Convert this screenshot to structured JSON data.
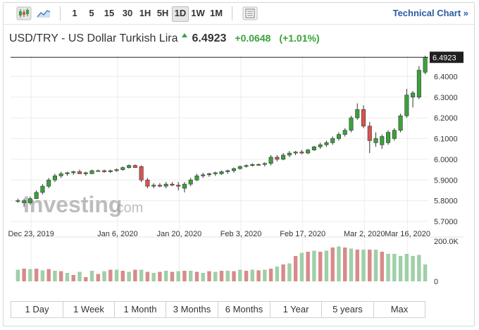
{
  "toolbar": {
    "intervals": [
      "1",
      "5",
      "15",
      "30",
      "1H",
      "5H",
      "1D",
      "1W",
      "1M"
    ],
    "active_interval": "1D",
    "technical_chart": "Technical Chart »"
  },
  "header": {
    "pair": "USD/TRY - US Dollar Turkish Lira",
    "price": "6.4923",
    "change": "+0.0648",
    "change_pct": "(+1.01%)"
  },
  "watermark": {
    "brand": "Investing",
    "suffix": ".com"
  },
  "colors": {
    "up": "#3aa23a",
    "down": "#d9534f",
    "vol_up": "#9fcfa8",
    "vol_down": "#d98a8a"
  },
  "ranges": [
    "1 Day",
    "1 Week",
    "1 Month",
    "3 Months",
    "6 Months",
    "1 Year",
    "5 years",
    "Max"
  ],
  "chart_data": {
    "type": "candlestick",
    "y_ticks": [
      "6.4000",
      "6.3000",
      "6.2000",
      "6.1000",
      "6.0000",
      "5.9000",
      "5.8000",
      "5.7000"
    ],
    "ylim": [
      5.7,
      6.5
    ],
    "x_ticks": [
      "Dec 23, 2019",
      "Jan 6, 2020",
      "Jan 20, 2020",
      "Feb 3, 2020",
      "Feb 17, 2020",
      "Mar 2, 2020",
      "Mar 16, 2020"
    ],
    "last_price_label": "6.4923",
    "last_price": 6.4923,
    "volume_ticks": [
      "200.0K",
      "0"
    ],
    "volume_max": 200000,
    "candles": [
      {
        "o": 5.8,
        "h": 5.81,
        "l": 5.79,
        "c": 5.8
      },
      {
        "o": 5.79,
        "h": 5.81,
        "l": 5.77,
        "c": 5.8
      },
      {
        "o": 5.79,
        "h": 5.82,
        "l": 5.78,
        "c": 5.81
      },
      {
        "o": 5.81,
        "h": 5.85,
        "l": 5.81,
        "c": 5.84
      },
      {
        "o": 5.84,
        "h": 5.88,
        "l": 5.83,
        "c": 5.87
      },
      {
        "o": 5.87,
        "h": 5.91,
        "l": 5.86,
        "c": 5.9
      },
      {
        "o": 5.9,
        "h": 5.93,
        "l": 5.89,
        "c": 5.92
      },
      {
        "o": 5.92,
        "h": 5.94,
        "l": 5.91,
        "c": 5.93
      },
      {
        "o": 5.93,
        "h": 5.94,
        "l": 5.92,
        "c": 5.935
      },
      {
        "o": 5.935,
        "h": 5.945,
        "l": 5.925,
        "c": 5.94
      },
      {
        "o": 5.94,
        "h": 5.95,
        "l": 5.93,
        "c": 5.93
      },
      {
        "o": 5.93,
        "h": 5.94,
        "l": 5.92,
        "c": 5.935
      },
      {
        "o": 5.93,
        "h": 5.95,
        "l": 5.93,
        "c": 5.945
      },
      {
        "o": 5.945,
        "h": 5.95,
        "l": 5.94,
        "c": 5.945
      },
      {
        "o": 5.945,
        "h": 5.95,
        "l": 5.935,
        "c": 5.94
      },
      {
        "o": 5.94,
        "h": 5.95,
        "l": 5.935,
        "c": 5.945
      },
      {
        "o": 5.945,
        "h": 5.955,
        "l": 5.94,
        "c": 5.95
      },
      {
        "o": 5.95,
        "h": 5.965,
        "l": 5.945,
        "c": 5.96
      },
      {
        "o": 5.96,
        "h": 5.975,
        "l": 5.955,
        "c": 5.97
      },
      {
        "o": 5.97,
        "h": 5.975,
        "l": 5.96,
        "c": 5.96
      },
      {
        "o": 5.965,
        "h": 5.97,
        "l": 5.89,
        "c": 5.9
      },
      {
        "o": 5.9,
        "h": 5.91,
        "l": 5.86,
        "c": 5.87
      },
      {
        "o": 5.87,
        "h": 5.885,
        "l": 5.86,
        "c": 5.875
      },
      {
        "o": 5.875,
        "h": 5.885,
        "l": 5.865,
        "c": 5.87
      },
      {
        "o": 5.87,
        "h": 5.89,
        "l": 5.86,
        "c": 5.88
      },
      {
        "o": 5.88,
        "h": 5.89,
        "l": 5.87,
        "c": 5.875
      },
      {
        "o": 5.875,
        "h": 5.89,
        "l": 5.85,
        "c": 5.87
      },
      {
        "o": 5.86,
        "h": 5.89,
        "l": 5.84,
        "c": 5.88
      },
      {
        "o": 5.88,
        "h": 5.91,
        "l": 5.87,
        "c": 5.9
      },
      {
        "o": 5.9,
        "h": 5.93,
        "l": 5.895,
        "c": 5.92
      },
      {
        "o": 5.92,
        "h": 5.935,
        "l": 5.91,
        "c": 5.925
      },
      {
        "o": 5.925,
        "h": 5.935,
        "l": 5.915,
        "c": 5.93
      },
      {
        "o": 5.93,
        "h": 5.94,
        "l": 5.92,
        "c": 5.935
      },
      {
        "o": 5.93,
        "h": 5.945,
        "l": 5.925,
        "c": 5.94
      },
      {
        "o": 5.94,
        "h": 5.95,
        "l": 5.93,
        "c": 5.945
      },
      {
        "o": 5.945,
        "h": 5.96,
        "l": 5.935,
        "c": 5.955
      },
      {
        "o": 5.955,
        "h": 5.97,
        "l": 5.95,
        "c": 5.965
      },
      {
        "o": 5.965,
        "h": 5.975,
        "l": 5.96,
        "c": 5.97
      },
      {
        "o": 5.97,
        "h": 5.98,
        "l": 5.965,
        "c": 5.975
      },
      {
        "o": 5.975,
        "h": 5.98,
        "l": 5.97,
        "c": 5.975
      },
      {
        "o": 5.975,
        "h": 5.985,
        "l": 5.965,
        "c": 5.98
      },
      {
        "o": 5.98,
        "h": 6.02,
        "l": 5.97,
        "c": 6.01
      },
      {
        "o": 6.01,
        "h": 6.02,
        "l": 5.99,
        "c": 6.0
      },
      {
        "o": 6.0,
        "h": 6.03,
        "l": 5.995,
        "c": 6.02
      },
      {
        "o": 6.02,
        "h": 6.04,
        "l": 6.01,
        "c": 6.03
      },
      {
        "o": 6.03,
        "h": 6.04,
        "l": 6.02,
        "c": 6.035
      },
      {
        "o": 6.035,
        "h": 6.045,
        "l": 6.025,
        "c": 6.03
      },
      {
        "o": 6.03,
        "h": 6.05,
        "l": 6.025,
        "c": 6.045
      },
      {
        "o": 6.045,
        "h": 6.065,
        "l": 6.04,
        "c": 6.06
      },
      {
        "o": 6.06,
        "h": 6.08,
        "l": 6.05,
        "c": 6.07
      },
      {
        "o": 6.07,
        "h": 6.09,
        "l": 6.06,
        "c": 6.08
      },
      {
        "o": 6.08,
        "h": 6.11,
        "l": 6.07,
        "c": 6.1
      },
      {
        "o": 6.1,
        "h": 6.13,
        "l": 6.09,
        "c": 6.12
      },
      {
        "o": 6.12,
        "h": 6.15,
        "l": 6.11,
        "c": 6.14
      },
      {
        "o": 6.14,
        "h": 6.21,
        "l": 6.13,
        "c": 6.2
      },
      {
        "o": 6.2,
        "h": 6.27,
        "l": 6.19,
        "c": 6.24
      },
      {
        "o": 6.24,
        "h": 6.26,
        "l": 6.15,
        "c": 6.16
      },
      {
        "o": 6.16,
        "h": 6.18,
        "l": 6.03,
        "c": 6.09
      },
      {
        "o": 6.08,
        "h": 6.13,
        "l": 6.06,
        "c": 6.1
      },
      {
        "o": 6.07,
        "h": 6.12,
        "l": 6.05,
        "c": 6.11
      },
      {
        "o": 6.08,
        "h": 6.14,
        "l": 6.07,
        "c": 6.13
      },
      {
        "o": 6.1,
        "h": 6.15,
        "l": 6.09,
        "c": 6.14
      },
      {
        "o": 6.14,
        "h": 6.22,
        "l": 6.13,
        "c": 6.21
      },
      {
        "o": 6.21,
        "h": 6.34,
        "l": 6.2,
        "c": 6.31
      },
      {
        "o": 6.3,
        "h": 6.33,
        "l": 6.25,
        "c": 6.32
      },
      {
        "o": 6.3,
        "h": 6.45,
        "l": 6.29,
        "c": 6.43
      },
      {
        "o": 6.42,
        "h": 6.5,
        "l": 6.41,
        "c": 6.4923
      }
    ],
    "volume": [
      {
        "v": 55000,
        "up": true
      },
      {
        "v": 60000,
        "up": false
      },
      {
        "v": 58000,
        "up": true
      },
      {
        "v": 60000,
        "up": false
      },
      {
        "v": 52000,
        "up": true
      },
      {
        "v": 58000,
        "up": false
      },
      {
        "v": 50000,
        "up": true
      },
      {
        "v": 48000,
        "up": false
      },
      {
        "v": 40000,
        "up": true
      },
      {
        "v": 30000,
        "up": false
      },
      {
        "v": 45000,
        "up": true
      },
      {
        "v": 20000,
        "up": false
      },
      {
        "v": 50000,
        "up": true
      },
      {
        "v": 35000,
        "up": false
      },
      {
        "v": 48000,
        "up": true
      },
      {
        "v": 55000,
        "up": false
      },
      {
        "v": 55000,
        "up": true
      },
      {
        "v": 50000,
        "up": false
      },
      {
        "v": 45000,
        "up": true
      },
      {
        "v": 55000,
        "up": false
      },
      {
        "v": 55000,
        "up": true
      },
      {
        "v": 45000,
        "up": false
      },
      {
        "v": 40000,
        "up": true
      },
      {
        "v": 45000,
        "up": false
      },
      {
        "v": 50000,
        "up": true
      },
      {
        "v": 45000,
        "up": false
      },
      {
        "v": 48000,
        "up": true
      },
      {
        "v": 50000,
        "up": false
      },
      {
        "v": 50000,
        "up": true
      },
      {
        "v": 45000,
        "up": false
      },
      {
        "v": 40000,
        "up": true
      },
      {
        "v": 48000,
        "up": false
      },
      {
        "v": 45000,
        "up": true
      },
      {
        "v": 50000,
        "up": false
      },
      {
        "v": 50000,
        "up": true
      },
      {
        "v": 48000,
        "up": false
      },
      {
        "v": 55000,
        "up": true
      },
      {
        "v": 50000,
        "up": false
      },
      {
        "v": 55000,
        "up": true
      },
      {
        "v": 52000,
        "up": false
      },
      {
        "v": 55000,
        "up": true
      },
      {
        "v": 60000,
        "up": false
      },
      {
        "v": 70000,
        "up": true
      },
      {
        "v": 80000,
        "up": false
      },
      {
        "v": 85000,
        "up": true
      },
      {
        "v": 120000,
        "up": false
      },
      {
        "v": 135000,
        "up": true
      },
      {
        "v": 140000,
        "up": false
      },
      {
        "v": 145000,
        "up": true
      },
      {
        "v": 140000,
        "up": false
      },
      {
        "v": 145000,
        "up": true
      },
      {
        "v": 160000,
        "up": false
      },
      {
        "v": 165000,
        "up": true
      },
      {
        "v": 160000,
        "up": false
      },
      {
        "v": 155000,
        "up": true
      },
      {
        "v": 150000,
        "up": false
      },
      {
        "v": 150000,
        "up": true
      },
      {
        "v": 150000,
        "up": false
      },
      {
        "v": 150000,
        "up": true
      },
      {
        "v": 140000,
        "up": false
      },
      {
        "v": 130000,
        "up": true
      },
      {
        "v": 130000,
        "up": true
      },
      {
        "v": 120000,
        "up": true
      },
      {
        "v": 130000,
        "up": true
      },
      {
        "v": 120000,
        "up": true
      },
      {
        "v": 125000,
        "up": true
      },
      {
        "v": 80000,
        "up": true
      }
    ]
  }
}
